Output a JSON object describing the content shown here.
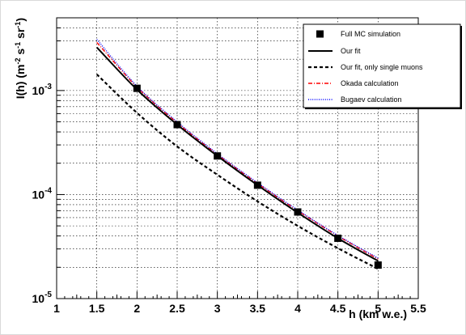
{
  "chart_data": {
    "type": "line",
    "title": "",
    "xlabel": "h (km w.e.)",
    "ylabel_main": "I(h) (m",
    "ylabel_exp1": "-2",
    "ylabel_mid1": " s",
    "ylabel_exp2": "-1",
    "ylabel_mid2": " sr",
    "ylabel_exp3": "-1",
    "ylabel_end": ")",
    "xlim": [
      1,
      5.5
    ],
    "ylim": [
      1e-05,
      0.005
    ],
    "yscale": "log",
    "grid": true,
    "legend_position": "top-right",
    "x_ticks": [
      1,
      1.5,
      2,
      2.5,
      3,
      3.5,
      4,
      4.5,
      5,
      5.5
    ],
    "x_tick_labels": [
      "1",
      "1.5",
      "2",
      "2.5",
      "3",
      "3.5",
      "4",
      "4.5",
      "5",
      "5.5"
    ],
    "y_major_ticks": [
      {
        "value": 1e-05,
        "base": "10",
        "exp": "-5"
      },
      {
        "value": 0.0001,
        "base": "10",
        "exp": "-4"
      },
      {
        "value": 0.001,
        "base": "10",
        "exp": "-3"
      }
    ],
    "series": [
      {
        "name": "Full MC simulation",
        "kind": "markers",
        "color": "#000000",
        "x": [
          2,
          2.5,
          3,
          3.5,
          4,
          4.5,
          5
        ],
        "y": [
          0.00105,
          0.00047,
          0.000235,
          0.000123,
          6.8e-05,
          3.8e-05,
          2.1e-05
        ]
      },
      {
        "name": "Our fit",
        "kind": "line",
        "style": "solid",
        "color": "#000000",
        "x": [
          1.5,
          2,
          2.5,
          3,
          3.5,
          4,
          4.5,
          5
        ],
        "y": [
          0.0026,
          0.00102,
          0.00047,
          0.000235,
          0.000123,
          6.7e-05,
          3.8e-05,
          2.3e-05
        ]
      },
      {
        "name": "Our fit, only single muons",
        "kind": "line",
        "style": "dashed",
        "color": "#000000",
        "x": [
          1.5,
          2,
          2.5,
          3,
          3.5,
          4,
          4.5,
          5
        ],
        "y": [
          0.00143,
          0.00061,
          0.00029,
          0.000155,
          8.6e-05,
          5e-05,
          3.05e-05,
          1.93e-05
        ]
      },
      {
        "name": "Okada calculation",
        "kind": "line",
        "style": "dashdot",
        "color": "#ff0000",
        "x": [
          1.5,
          2,
          2.5,
          3,
          3.5,
          4,
          4.5,
          5
        ],
        "y": [
          0.0029,
          0.00108,
          0.00049,
          0.000243,
          0.000128,
          7e-05,
          4e-05,
          2.4e-05
        ]
      },
      {
        "name": "Bugaev calculation",
        "kind": "line",
        "style": "dotted",
        "color": "#0000ff",
        "x": [
          1.5,
          2,
          2.5,
          3,
          3.5,
          4,
          4.5,
          5
        ],
        "y": [
          0.0031,
          0.0011,
          0.0005,
          0.000247,
          0.00013,
          7.1e-05,
          4.05e-05,
          2.45e-05
        ]
      }
    ]
  }
}
